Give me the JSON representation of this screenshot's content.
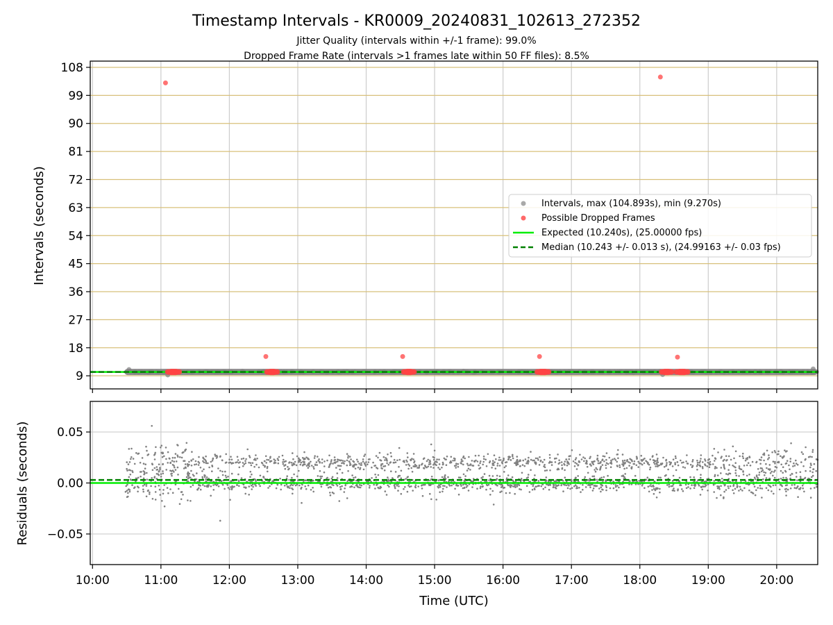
{
  "figure": {
    "title": "Timestamp Intervals - KR0009_20240831_102613_272352",
    "subtitle1": "Jitter Quality (intervals within +/-1 frame): 99.0%",
    "subtitle2": "Dropped Frame Rate (intervals >1 frames late within 50 FF files): 8.5%"
  },
  "colors": {
    "intervals": "#808080",
    "dropped": "#ff4444",
    "expected": "#00ee00",
    "median": "#008000",
    "hgrid_top": "#d8c07a",
    "grid": "#cccccc"
  },
  "chart_data": [
    {
      "type": "scatter",
      "ylabel": "Intervals (seconds)",
      "xlim": [
        "09:58",
        "20:36"
      ],
      "ylim": [
        4.8,
        110
      ],
      "yticks": [
        9,
        18,
        27,
        36,
        45,
        54,
        63,
        72,
        81,
        90,
        99,
        108
      ],
      "grid": true,
      "legend_position": "center-right",
      "legend": [
        {
          "marker": "dot",
          "color": "#a9a9a9",
          "label": "Intervals, max (104.893s), min (9.270s)"
        },
        {
          "marker": "dot",
          "color": "#ff4444",
          "label": "Possible Dropped Frames"
        },
        {
          "marker": "line",
          "color": "#00ee00",
          "label": "Expected (10.240s), (25.00000 fps)"
        },
        {
          "marker": "dash",
          "color": "#008000",
          "label": "Median (10.243 +/- 0.013 s), (24.99163 +/- 0.03 fps)"
        }
      ],
      "series": [
        {
          "name": "Intervals, max (104.893s), min (9.270s)",
          "x_range": [
            "10:28",
            "20:36"
          ],
          "typical_value": 10.24,
          "extremes": [
            {
              "x": "10:32",
              "y": 11.0
            },
            {
              "x": "11:06",
              "y": 9.27
            },
            {
              "x": "18:20",
              "y": 9.4
            },
            {
              "x": "20:32",
              "y": 11.2
            }
          ]
        },
        {
          "name": "Possible Dropped Frames",
          "points": [
            {
              "x": "11:04",
              "y": 103.0
            },
            {
              "x": "12:32",
              "y": 15.2
            },
            {
              "x": "14:32",
              "y": 15.2
            },
            {
              "x": "16:32",
              "y": 15.2
            },
            {
              "x": "18:18",
              "y": 104.89
            },
            {
              "x": "18:33",
              "y": 15.0
            }
          ],
          "clusters": [
            {
              "from": "11:06",
              "to": "11:16",
              "y": 10.24
            },
            {
              "from": "12:33",
              "to": "12:42",
              "y": 10.24
            },
            {
              "from": "14:33",
              "to": "14:42",
              "y": 10.24
            },
            {
              "from": "16:30",
              "to": "16:40",
              "y": 10.24
            },
            {
              "from": "18:19",
              "to": "18:28",
              "y": 10.24
            },
            {
              "from": "18:32",
              "to": "18:42",
              "y": 10.24
            }
          ]
        },
        {
          "name": "Expected (10.240s), (25.00000 fps)",
          "y": 10.24
        },
        {
          "name": "Median (10.243 +/- 0.013 s), (24.99163 +/- 0.03 fps)",
          "y": 10.243
        }
      ]
    },
    {
      "type": "scatter",
      "xlabel": "Time (UTC)",
      "ylabel": "Residuals (seconds)",
      "xlim": [
        "09:58",
        "20:36"
      ],
      "ylim": [
        -0.08,
        0.08
      ],
      "yticks": [
        -0.05,
        0.0,
        0.05
      ],
      "ytick_labels": [
        "−0.05",
        "0.00",
        "0.05"
      ],
      "xticks": [
        "10:00",
        "11:00",
        "12:00",
        "13:00",
        "14:00",
        "15:00",
        "16:00",
        "17:00",
        "18:00",
        "19:00",
        "20:00"
      ],
      "grid": true,
      "series": [
        {
          "name": "Residuals",
          "x_range": [
            "10:28",
            "20:36"
          ],
          "bands": [
            0.0,
            0.02
          ],
          "min": -0.037,
          "max": 0.056
        },
        {
          "name": "Expected",
          "y": 0.0
        },
        {
          "name": "Median",
          "y": 0.003
        }
      ]
    }
  ]
}
